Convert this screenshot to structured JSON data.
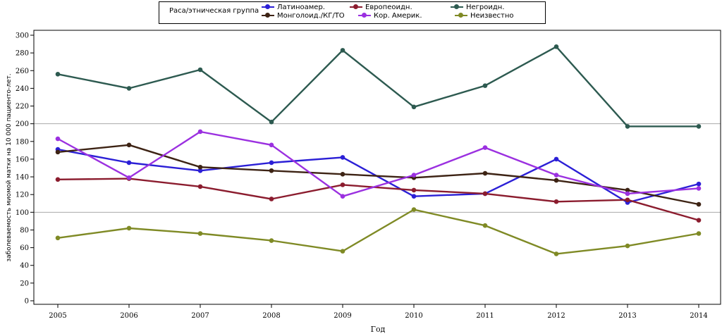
{
  "chart_data": {
    "type": "line",
    "title": "",
    "xlabel": "Год",
    "ylabel": "заболеваемость миомой матки на 10 000 пациенто-лет.",
    "x": [
      2005,
      2006,
      2007,
      2008,
      2009,
      2010,
      2011,
      2012,
      2013,
      2014
    ],
    "ylim": [
      0,
      300
    ],
    "yticks": [
      0,
      20,
      40,
      60,
      80,
      100,
      120,
      140,
      160,
      180,
      200,
      220,
      240,
      260,
      280,
      300
    ],
    "reference_lines": [
      100,
      200
    ],
    "legend_title": "Раса/этническая группа",
    "legend_position": "top-center",
    "series": [
      {
        "name": "Латиноамер.",
        "color": "#2b1fd6",
        "values": [
          171,
          156,
          147,
          156,
          162,
          118,
          121,
          160,
          111,
          132
        ]
      },
      {
        "name": "Монголоид./КГ/ТО",
        "color": "#3d2314",
        "values": [
          168,
          176,
          151,
          147,
          143,
          139,
          144,
          136,
          125,
          109
        ]
      },
      {
        "name": "Европеоидн.",
        "color": "#8b1c2e",
        "values": [
          137,
          138,
          129,
          115,
          131,
          125,
          121,
          112,
          114,
          91
        ]
      },
      {
        "name": "Кор. Америк.",
        "color": "#9b30e0",
        "values": [
          183,
          139,
          191,
          176,
          118,
          142,
          173,
          142,
          121,
          127
        ]
      },
      {
        "name": "Негроидн.",
        "color": "#2d5a50",
        "values": [
          256,
          240,
          261,
          202,
          283,
          219,
          243,
          287,
          197,
          197
        ]
      },
      {
        "name": "Неизвестно",
        "color": "#7f8a25",
        "values": [
          71,
          82,
          76,
          68,
          56,
          103,
          85,
          53,
          62,
          76
        ]
      }
    ]
  }
}
